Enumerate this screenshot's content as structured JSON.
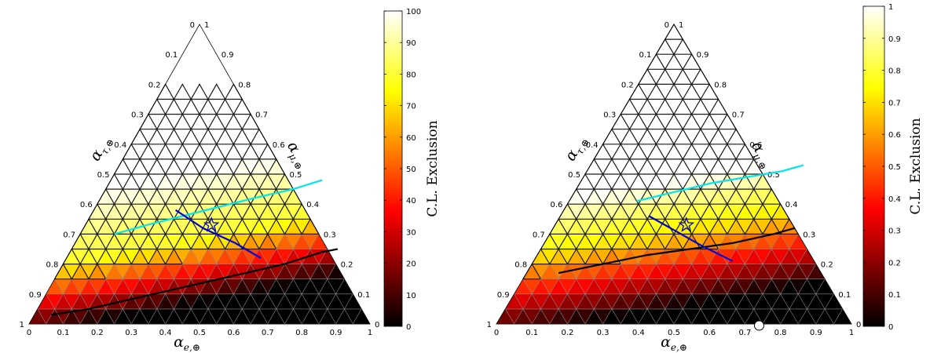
{
  "chart_data": [
    {
      "type": "heatmap",
      "subtype": "ternary",
      "axis_labels": {
        "bottom": "α_{e,⊕}",
        "left": "α_{τ,⊕}",
        "right": "α_{μ,⊕}"
      },
      "ticks": [
        "0",
        "0.1",
        "0.2",
        "0.3",
        "0.4",
        "0.5",
        "0.6",
        "0.7",
        "0.8",
        "0.9",
        "1"
      ],
      "colorbar": {
        "label": "C.L. Exclusion",
        "min": 0,
        "max": 100,
        "ticks": [
          "0",
          "10",
          "20",
          "30",
          "40",
          "50",
          "60",
          "70",
          "80",
          "90",
          "100"
        ],
        "colormap": "hot"
      },
      "grid_excluded_region": "top corner (alpha_mu > 0.75) and white (alpha_e < 0.25, alpha_mu > 0.45) regions not shown",
      "contours": [
        {
          "color": "#00e5ee",
          "points": [
            [
              0.1,
              0.3
            ],
            [
              0.18,
              0.33
            ],
            [
              0.27,
              0.36
            ],
            [
              0.36,
              0.39
            ],
            [
              0.45,
              0.42
            ],
            [
              0.55,
              0.45
            ],
            [
              0.62,
              0.48
            ]
          ]
        },
        {
          "color": "#000000",
          "points": [
            [
              0.05,
              0.03
            ],
            [
              0.15,
              0.05
            ],
            [
              0.25,
              0.08
            ],
            [
              0.35,
              0.11
            ],
            [
              0.45,
              0.14
            ],
            [
              0.55,
              0.17
            ],
            [
              0.65,
              0.2
            ],
            [
              0.74,
              0.24
            ],
            [
              0.78,
              0.25
            ]
          ]
        }
      ],
      "best_fit": {
        "color": "#0000dd",
        "points": [
          [
            0.24,
            0.38
          ],
          [
            0.35,
            0.32
          ],
          [
            0.47,
            0.27
          ],
          [
            0.57,
            0.22
          ]
        ],
        "star": [
          0.37,
          0.33
        ]
      }
    },
    {
      "type": "heatmap",
      "subtype": "ternary",
      "axis_labels": {
        "bottom": "α_{e,⊕}",
        "left": "α_{τ,⊕}",
        "right": "α_{μ,⊕}"
      },
      "ticks": [
        "0",
        "0.1",
        "0.2",
        "0.3",
        "0.4",
        "0.5",
        "0.6",
        "0.7",
        "0.8",
        "0.9",
        "1"
      ],
      "colorbar": {
        "label": "C.L. Exclusion",
        "min": 0,
        "max": 1,
        "ticks": [
          "0",
          "0.1",
          "0.2",
          "0.3",
          "0.4",
          "0.5",
          "0.6",
          "0.7",
          "0.8",
          "0.9",
          "1"
        ],
        "colormap": "hot"
      },
      "contours": [
        {
          "color": "#00e5ee",
          "points": [
            [
              0.19,
              0.41
            ],
            [
              0.28,
              0.44
            ],
            [
              0.37,
              0.47
            ],
            [
              0.46,
              0.49
            ],
            [
              0.55,
              0.51
            ],
            [
              0.6,
              0.53
            ]
          ]
        },
        {
          "color": "#000000",
          "points": [
            [
              0.09,
              0.17
            ],
            [
              0.2,
              0.2
            ],
            [
              0.31,
              0.23
            ],
            [
              0.42,
              0.25
            ],
            [
              0.53,
              0.27
            ],
            [
              0.63,
              0.3
            ],
            [
              0.68,
              0.32
            ]
          ]
        }
      ],
      "best_fit": {
        "color": "#0000dd",
        "points": [
          [
            0.25,
            0.36
          ],
          [
            0.35,
            0.31
          ],
          [
            0.45,
            0.26
          ],
          [
            0.56,
            0.21
          ]
        ],
        "star": [
          0.37,
          0.33
        ]
      },
      "marker": {
        "label": "",
        "point": [
          0.74,
          0.0
        ]
      }
    }
  ]
}
